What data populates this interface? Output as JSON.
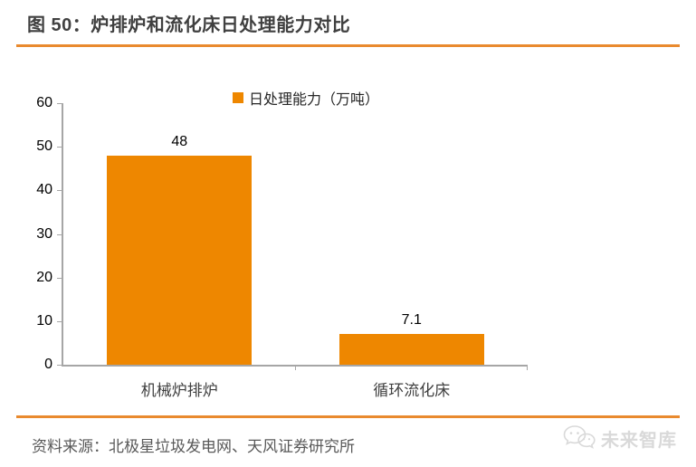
{
  "title": "图 50：炉排炉和流化床日处理能力对比",
  "legend": {
    "label": "日处理能力（万吨）"
  },
  "chart_data": {
    "type": "bar",
    "title": "炉排炉和流化床日处理能力对比",
    "categories": [
      "机械炉排炉",
      "循环流化床"
    ],
    "values": [
      48,
      7.1
    ],
    "data_labels": [
      "48",
      "7.1"
    ],
    "series_name": "日处理能力（万吨）",
    "ylim": [
      0,
      60
    ],
    "y_ticks": [
      0,
      10,
      20,
      30,
      40,
      50,
      60
    ],
    "grid": false,
    "legend_position": "top-center",
    "bar_color": "#ee8700"
  },
  "footer": {
    "source": "资料来源：北极星垃圾发电网、天风证券研究所",
    "watermark": "未来智库"
  },
  "icons": {
    "watermark_logo": "chat-bubbles-icon"
  },
  "colors": {
    "accent_orange": "#ee8700",
    "rule_orange": "#e98a2e",
    "axis_gray": "#a6a6a6",
    "title_text": "#404040",
    "source_text": "#595959",
    "watermark_gray": "#d9d9d9"
  }
}
